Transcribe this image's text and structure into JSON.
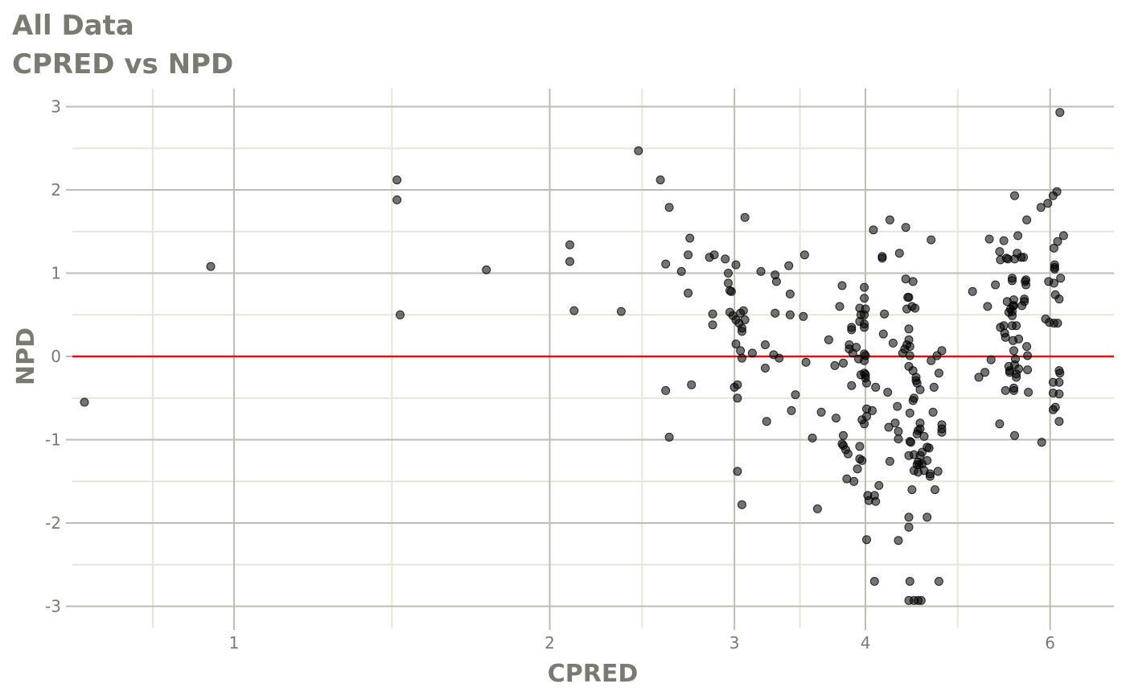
{
  "chart_data": {
    "type": "scatter",
    "title": "All Data",
    "subtitle": "CPRED vs NPD",
    "xlabel": "CPRED",
    "ylabel": "NPD",
    "x_scale": "log",
    "xlim": [
      0.7,
      6.5
    ],
    "ylim": [
      -3.2,
      3.2
    ],
    "x_ticks": [
      1,
      2,
      3,
      4,
      6
    ],
    "x_tick_labels": [
      "1",
      "2",
      "3",
      "4",
      "6"
    ],
    "y_ticks": [
      -3,
      -2,
      -1,
      0,
      1,
      2,
      3
    ],
    "y_tick_labels": [
      "-3",
      "-2",
      "-1",
      "0",
      "1",
      "2",
      "3"
    ],
    "grid": true,
    "reference_line": {
      "y": 0,
      "color": "#dd1111"
    },
    "point_color": "#000000",
    "points": [
      [
        0.72,
        -0.55
      ],
      [
        0.95,
        1.08
      ],
      [
        1.43,
        2.12
      ],
      [
        1.43,
        1.88
      ],
      [
        1.44,
        0.5
      ],
      [
        1.74,
        1.04
      ],
      [
        2.09,
        1.34
      ],
      [
        2.09,
        1.14
      ],
      [
        2.11,
        0.55
      ],
      [
        2.34,
        0.54
      ],
      [
        2.43,
        2.47
      ],
      [
        2.55,
        2.12
      ],
      [
        2.6,
        1.79
      ],
      [
        2.58,
        1.11
      ],
      [
        2.67,
        1.02
      ],
      [
        2.72,
        1.42
      ],
      [
        2.71,
        1.22
      ],
      [
        2.71,
        0.76
      ],
      [
        2.73,
        -0.34
      ],
      [
        2.58,
        -0.41
      ],
      [
        2.6,
        -0.97
      ],
      [
        2.84,
        1.19
      ],
      [
        2.87,
        1.22
      ],
      [
        2.86,
        0.51
      ],
      [
        2.86,
        0.38
      ],
      [
        2.94,
        1.17
      ],
      [
        2.97,
        0.79
      ],
      [
        2.96,
        1.0
      ],
      [
        2.96,
        0.88
      ],
      [
        2.98,
        0.78
      ],
      [
        2.97,
        0.53
      ],
      [
        2.99,
        0.49
      ],
      [
        3.01,
        1.1
      ],
      [
        3.01,
        0.44
      ],
      [
        3.04,
        0.52
      ],
      [
        3.03,
        0.4
      ],
      [
        3.06,
        0.55
      ],
      [
        3.07,
        0.44
      ],
      [
        3.05,
        0.34
      ],
      [
        3.05,
        0.3
      ],
      [
        3.01,
        0.15
      ],
      [
        3.04,
        0.07
      ],
      [
        3.05,
        -0.02
      ],
      [
        3.0,
        -0.37
      ],
      [
        3.02,
        -0.34
      ],
      [
        3.02,
        -0.5
      ],
      [
        3.02,
        -1.38
      ],
      [
        3.05,
        -1.78
      ],
      [
        3.07,
        1.67
      ],
      [
        3.12,
        0.04
      ],
      [
        3.18,
        1.02
      ],
      [
        3.21,
        0.14
      ],
      [
        3.21,
        -0.14
      ],
      [
        3.22,
        -0.78
      ],
      [
        3.28,
        0.98
      ],
      [
        3.29,
        0.9
      ],
      [
        3.28,
        0.52
      ],
      [
        3.27,
        0.02
      ],
      [
        3.31,
        -0.02
      ],
      [
        3.38,
        1.09
      ],
      [
        3.39,
        0.75
      ],
      [
        3.39,
        0.5
      ],
      [
        3.4,
        -0.65
      ],
      [
        3.43,
        -0.46
      ],
      [
        3.5,
        1.22
      ],
      [
        3.49,
        0.48
      ],
      [
        3.51,
        -0.07
      ],
      [
        3.56,
        -0.98
      ],
      [
        3.6,
        -1.83
      ],
      [
        3.63,
        -0.67
      ],
      [
        3.69,
        0.2
      ],
      [
        3.74,
        -0.11
      ],
      [
        3.75,
        -0.74
      ],
      [
        3.78,
        0.6
      ],
      [
        3.8,
        0.85
      ],
      [
        3.81,
        -0.08
      ],
      [
        3.81,
        -0.95
      ],
      [
        3.8,
        -1.05
      ],
      [
        3.81,
        -1.07
      ],
      [
        3.83,
        -1.12
      ],
      [
        3.85,
        -1.17
      ],
      [
        3.84,
        -1.47
      ],
      [
        3.86,
        0.14
      ],
      [
        3.86,
        0.09
      ],
      [
        3.88,
        0.35
      ],
      [
        3.88,
        0.32
      ],
      [
        3.89,
        0.04
      ],
      [
        3.88,
        -0.35
      ],
      [
        3.9,
        -1.5
      ],
      [
        3.92,
        0.11
      ],
      [
        3.93,
        -1.35
      ],
      [
        3.94,
        -0.03
      ],
      [
        3.95,
        0.58
      ],
      [
        3.96,
        0.5
      ],
      [
        3.95,
        0.42
      ],
      [
        3.96,
        -0.22
      ],
      [
        3.95,
        -1.08
      ],
      [
        3.97,
        -0.76
      ],
      [
        3.95,
        -1.23
      ],
      [
        3.97,
        -1.25
      ],
      [
        3.99,
        0.83
      ],
      [
        3.99,
        0.7
      ],
      [
        4.0,
        0.57
      ],
      [
        3.99,
        0.5
      ],
      [
        3.99,
        0.39
      ],
      [
        3.99,
        0.35
      ],
      [
        3.99,
        0.03
      ],
      [
        4.0,
        0.01
      ],
      [
        3.99,
        -0.05
      ],
      [
        3.99,
        -0.2
      ],
      [
        4.0,
        -0.22
      ],
      [
        4.0,
        -0.26
      ],
      [
        4.01,
        -0.32
      ],
      [
        3.99,
        -0.81
      ],
      [
        4.01,
        -0.72
      ],
      [
        4.01,
        -0.63
      ],
      [
        4.02,
        -1.67
      ],
      [
        4.01,
        -2.2
      ],
      [
        4.03,
        -1.73
      ],
      [
        4.06,
        -0.65
      ],
      [
        4.07,
        1.52
      ],
      [
        4.09,
        -0.37
      ],
      [
        4.08,
        -1.67
      ],
      [
        4.09,
        -1.74
      ],
      [
        4.08,
        -2.7
      ],
      [
        4.12,
        -1.55
      ],
      [
        4.15,
        1.18
      ],
      [
        4.15,
        1.2
      ],
      [
        4.17,
        0.51
      ],
      [
        4.16,
        0.27
      ],
      [
        4.2,
        -0.43
      ],
      [
        4.22,
        1.64
      ],
      [
        4.21,
        -0.85
      ],
      [
        4.22,
        -1.26
      ],
      [
        4.25,
        0.16
      ],
      [
        4.27,
        -0.8
      ],
      [
        4.29,
        -0.6
      ],
      [
        4.3,
        -0.9
      ],
      [
        4.3,
        -0.99
      ],
      [
        4.3,
        -2.21
      ],
      [
        4.31,
        1.24
      ],
      [
        4.34,
        0.04
      ],
      [
        4.37,
        1.55
      ],
      [
        4.37,
        0.93
      ],
      [
        4.36,
        0.09
      ],
      [
        4.38,
        0.57
      ],
      [
        4.39,
        0.71
      ],
      [
        4.38,
        0.14
      ],
      [
        4.4,
        0.2
      ],
      [
        4.4,
        0.71
      ],
      [
        4.4,
        0.33
      ],
      [
        4.41,
        0.12
      ],
      [
        4.41,
        0.01
      ],
      [
        4.4,
        -0.12
      ],
      [
        4.41,
        -0.68
      ],
      [
        4.41,
        -1.02
      ],
      [
        4.4,
        -1.19
      ],
      [
        4.4,
        -1.93
      ],
      [
        4.4,
        -2.05
      ],
      [
        4.41,
        -2.7
      ],
      [
        4.4,
        -2.93
      ],
      [
        4.42,
        -1.03
      ],
      [
        4.43,
        -1.6
      ],
      [
        4.43,
        0.6
      ],
      [
        4.44,
        0.9
      ],
      [
        4.44,
        -0.17
      ],
      [
        4.44,
        -0.53
      ],
      [
        4.45,
        -0.5
      ],
      [
        4.45,
        -1.18
      ],
      [
        4.45,
        -1.37
      ],
      [
        4.45,
        -2.93
      ],
      [
        4.46,
        0.58
      ],
      [
        4.47,
        -0.29
      ],
      [
        4.47,
        -0.25
      ],
      [
        4.48,
        -0.32
      ],
      [
        4.49,
        -0.89
      ],
      [
        4.48,
        -0.93
      ],
      [
        4.49,
        -1.27
      ],
      [
        4.48,
        -1.3
      ],
      [
        4.49,
        -1.39
      ],
      [
        4.49,
        -2.93
      ],
      [
        4.51,
        -0.4
      ],
      [
        4.51,
        -0.8
      ],
      [
        4.51,
        -0.87
      ],
      [
        4.5,
        -1.3
      ],
      [
        4.51,
        -1.19
      ],
      [
        4.52,
        -2.93
      ],
      [
        4.53,
        -1.15
      ],
      [
        4.53,
        -1.29
      ],
      [
        4.55,
        -0.96
      ],
      [
        4.55,
        -1.37
      ],
      [
        4.58,
        -1.09
      ],
      [
        4.58,
        -1.25
      ],
      [
        4.58,
        -1.93
      ],
      [
        4.6,
        -1.1
      ],
      [
        4.61,
        -1.44
      ],
      [
        4.61,
        -1.41
      ],
      [
        4.62,
        1.4
      ],
      [
        4.62,
        -0.05
      ],
      [
        4.65,
        -0.37
      ],
      [
        4.64,
        -0.67
      ],
      [
        4.66,
        -1.6
      ],
      [
        4.68,
        0.01
      ],
      [
        4.7,
        -0.2
      ],
      [
        4.69,
        -1.38
      ],
      [
        4.7,
        -2.7
      ],
      [
        4.73,
        0.07
      ],
      [
        4.73,
        -0.82
      ],
      [
        4.73,
        -0.87
      ],
      [
        4.73,
        -0.91
      ],
      [
        5.06,
        0.78
      ],
      [
        5.13,
        -0.25
      ],
      [
        5.2,
        -0.19
      ],
      [
        5.23,
        0.6
      ],
      [
        5.25,
        1.41
      ],
      [
        5.27,
        -0.04
      ],
      [
        5.32,
        0.86
      ],
      [
        5.37,
        1.26
      ],
      [
        5.38,
        1.16
      ],
      [
        5.38,
        0.35
      ],
      [
        5.37,
        -0.81
      ],
      [
        5.42,
        1.39
      ],
      [
        5.42,
        0.37
      ],
      [
        5.43,
        0.28
      ],
      [
        5.44,
        0.23
      ],
      [
        5.44,
        -0.41
      ],
      [
        5.45,
        1.18
      ],
      [
        5.46,
        0.66
      ],
      [
        5.47,
        1.17
      ],
      [
        5.48,
        0.53
      ],
      [
        5.48,
        -0.12
      ],
      [
        5.49,
        -0.17
      ],
      [
        5.49,
        -0.19
      ],
      [
        5.5,
        0.57
      ],
      [
        5.52,
        0.94
      ],
      [
        5.52,
        0.91
      ],
      [
        5.53,
        0.61
      ],
      [
        5.52,
        0.54
      ],
      [
        5.52,
        0.49
      ],
      [
        5.52,
        0.37
      ],
      [
        5.53,
        0.19
      ],
      [
        5.54,
        0.68
      ],
      [
        5.54,
        0.61
      ],
      [
        5.54,
        0.07
      ],
      [
        5.54,
        -0.38
      ],
      [
        5.54,
        -0.41
      ],
      [
        5.55,
        1.93
      ],
      [
        5.55,
        1.17
      ],
      [
        5.55,
        -0.1
      ],
      [
        5.55,
        -0.95
      ],
      [
        5.56,
        -0.03
      ],
      [
        5.57,
        0.37
      ],
      [
        5.57,
        -0.25
      ],
      [
        5.57,
        -0.21
      ],
      [
        5.59,
        1.45
      ],
      [
        5.58,
        1.24
      ],
      [
        5.6,
        0.21
      ],
      [
        5.6,
        -0.15
      ],
      [
        5.63,
        1.19
      ],
      [
        5.64,
        0.61
      ],
      [
        5.66,
        1.19
      ],
      [
        5.67,
        0.69
      ],
      [
        5.67,
        0.66
      ],
      [
        5.68,
        0.9
      ],
      [
        5.69,
        0.92
      ],
      [
        5.69,
        0.86
      ],
      [
        5.7,
        1.64
      ],
      [
        5.7,
        0.12
      ],
      [
        5.71,
        0.01
      ],
      [
        5.71,
        -0.16
      ],
      [
        5.72,
        -0.43
      ],
      [
        5.88,
        1.79
      ],
      [
        5.89,
        -1.03
      ],
      [
        5.94,
        0.45
      ],
      [
        5.97,
        1.84
      ],
      [
        5.98,
        0.9
      ],
      [
        5.99,
        0.41
      ],
      [
        6.04,
        1.93
      ],
      [
        6.05,
        1.3
      ],
      [
        6.05,
        0.88
      ],
      [
        6.05,
        0.4
      ],
      [
        6.04,
        -0.31
      ],
      [
        6.04,
        -0.44
      ],
      [
        6.04,
        -0.64
      ],
      [
        6.06,
        1.1
      ],
      [
        6.06,
        1.07
      ],
      [
        6.06,
        1.05
      ],
      [
        6.07,
        0.74
      ],
      [
        6.07,
        -0.61
      ],
      [
        6.09,
        1.98
      ],
      [
        6.1,
        1.38
      ],
      [
        6.1,
        0.4
      ],
      [
        6.12,
        0.69
      ],
      [
        6.12,
        -0.31
      ],
      [
        6.12,
        -0.45
      ],
      [
        6.12,
        -0.78
      ],
      [
        6.12,
        -0.17
      ],
      [
        6.13,
        -0.2
      ],
      [
        6.13,
        2.93
      ],
      [
        6.14,
        0.94
      ],
      [
        6.18,
        1.45
      ]
    ]
  }
}
